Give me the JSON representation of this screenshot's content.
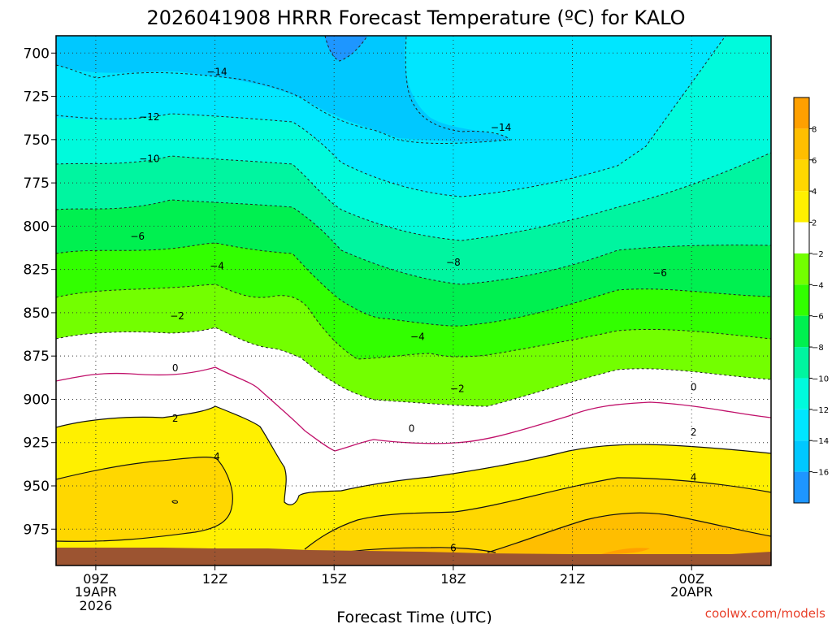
{
  "chart_data": {
    "type": "contour",
    "title": "2026041908 HRRR Forecast Temperature (ºC) for KALO",
    "xlabel": "Forecast Time (UTC)",
    "ylabel": "",
    "x_ticks": [
      {
        "value": 9,
        "label": "09Z",
        "sub": [
          "19APR",
          "2026"
        ]
      },
      {
        "value": 12,
        "label": "12Z",
        "sub": []
      },
      {
        "value": 15,
        "label": "15Z",
        "sub": []
      },
      {
        "value": 18,
        "label": "18Z",
        "sub": []
      },
      {
        "value": 21,
        "label": "21Z",
        "sub": []
      },
      {
        "value": 24,
        "label": "00Z",
        "sub": [
          "20APR"
        ]
      }
    ],
    "xlim": [
      8,
      26
    ],
    "y_ticks": [
      700,
      725,
      750,
      775,
      800,
      825,
      850,
      875,
      900,
      925,
      950,
      975
    ],
    "ylim": [
      690,
      996
    ],
    "y_scale": "linear-inverted",
    "grid": true,
    "colorbar": {
      "levels": [
        -18,
        -16,
        -14,
        -12,
        -10,
        -8,
        -6,
        -4,
        -2,
        2,
        4,
        6,
        8,
        10
      ],
      "tick_labels": [
        "-16",
        "-14",
        "-12",
        "-10",
        "-8",
        "-6",
        "-4",
        "-2",
        "2",
        "4",
        "6",
        "8"
      ],
      "colors": [
        "#1e96ff",
        "#00c8ff",
        "#00e6ff",
        "#00fadc",
        "#00f5a0",
        "#00f050",
        "#32ff00",
        "#73ff00",
        "#ffffff",
        "#fff000",
        "#ffd700",
        "#ffbe00",
        "#ffa000"
      ],
      "placement": "right"
    },
    "contour_labels": [
      {
        "value": "-14",
        "x": 12.05,
        "p": 711
      },
      {
        "value": "-14",
        "x": 19.2,
        "p": 743
      },
      {
        "value": "-12",
        "x": 10.35,
        "p": 737
      },
      {
        "value": "-10",
        "x": 10.35,
        "p": 761
      },
      {
        "value": "-8",
        "x": 18.0,
        "p": 821
      },
      {
        "value": "-6",
        "x": 10.05,
        "p": 806
      },
      {
        "value": "-6",
        "x": 23.2,
        "p": 827
      },
      {
        "value": "-4",
        "x": 12.05,
        "p": 823
      },
      {
        "value": "-4",
        "x": 17.1,
        "p": 864
      },
      {
        "value": "-2",
        "x": 11.05,
        "p": 852
      },
      {
        "value": "-2",
        "x": 18.1,
        "p": 894
      },
      {
        "value": "0",
        "x": 11.0,
        "p": 882
      },
      {
        "value": "0",
        "x": 16.95,
        "p": 917
      },
      {
        "value": "0",
        "x": 24.05,
        "p": 893
      },
      {
        "value": "2",
        "x": 11.0,
        "p": 911
      },
      {
        "value": "2",
        "x": 24.05,
        "p": 919
      },
      {
        "value": "4",
        "x": 12.05,
        "p": 933
      },
      {
        "value": "4",
        "x": 24.05,
        "p": 945
      },
      {
        "value": "6",
        "x": 18.0,
        "p": 986
      }
    ],
    "colors": {
      "grid": "#333333",
      "dashed_contour": "#222222",
      "zero_contour": "#c0106a",
      "positive_contour": "#111111",
      "ground": "#9c5431"
    }
  },
  "credit": "coolwx.com/models"
}
